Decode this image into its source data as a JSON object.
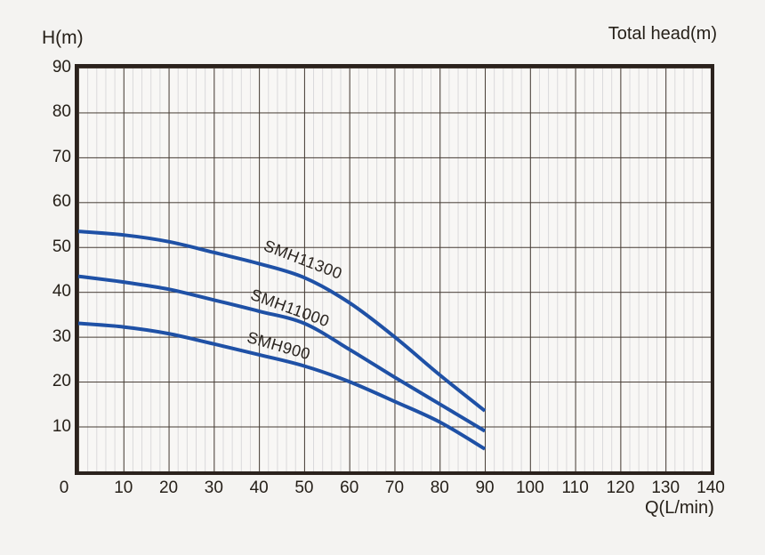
{
  "chart_data": {
    "type": "line",
    "y_axis_label": "H(m)",
    "y_axis_label_right": "Total head(m)",
    "x_axis_label": "Q(L/min)",
    "origin_label": "0",
    "xlim": [
      0,
      140
    ],
    "ylim": [
      0,
      90
    ],
    "x_ticks": [
      0,
      10,
      20,
      30,
      40,
      50,
      60,
      70,
      80,
      90,
      100,
      110,
      120,
      130,
      140
    ],
    "y_ticks": [
      10,
      20,
      30,
      40,
      50,
      60,
      70,
      80,
      90
    ],
    "minor_grid_step": 2,
    "grid": "on",
    "legend_position": "labels-on-curves",
    "x": [
      0,
      10,
      20,
      30,
      40,
      50,
      60,
      70,
      80,
      90
    ],
    "series": [
      {
        "name": "SMH11300",
        "values": [
          53.5,
          52.7,
          51.2,
          48.8,
          46.3,
          43.2,
          37.6,
          30.0,
          21.5,
          13.5
        ]
      },
      {
        "name": "SMH11000",
        "values": [
          43.5,
          42.2,
          40.6,
          38.2,
          35.7,
          33.0,
          27.2,
          21.0,
          15.0,
          9.0
        ]
      },
      {
        "name": "SMH900",
        "values": [
          33.0,
          32.2,
          30.7,
          28.4,
          26.0,
          23.5,
          20.0,
          15.6,
          11.0,
          5.0
        ]
      }
    ],
    "curve_color": "#1f51a6",
    "major_grid_color": "#453b33",
    "minor_grid_color": "#d9d8da",
    "border_color": "#2b221d",
    "background_color": "#f4f3f1"
  }
}
